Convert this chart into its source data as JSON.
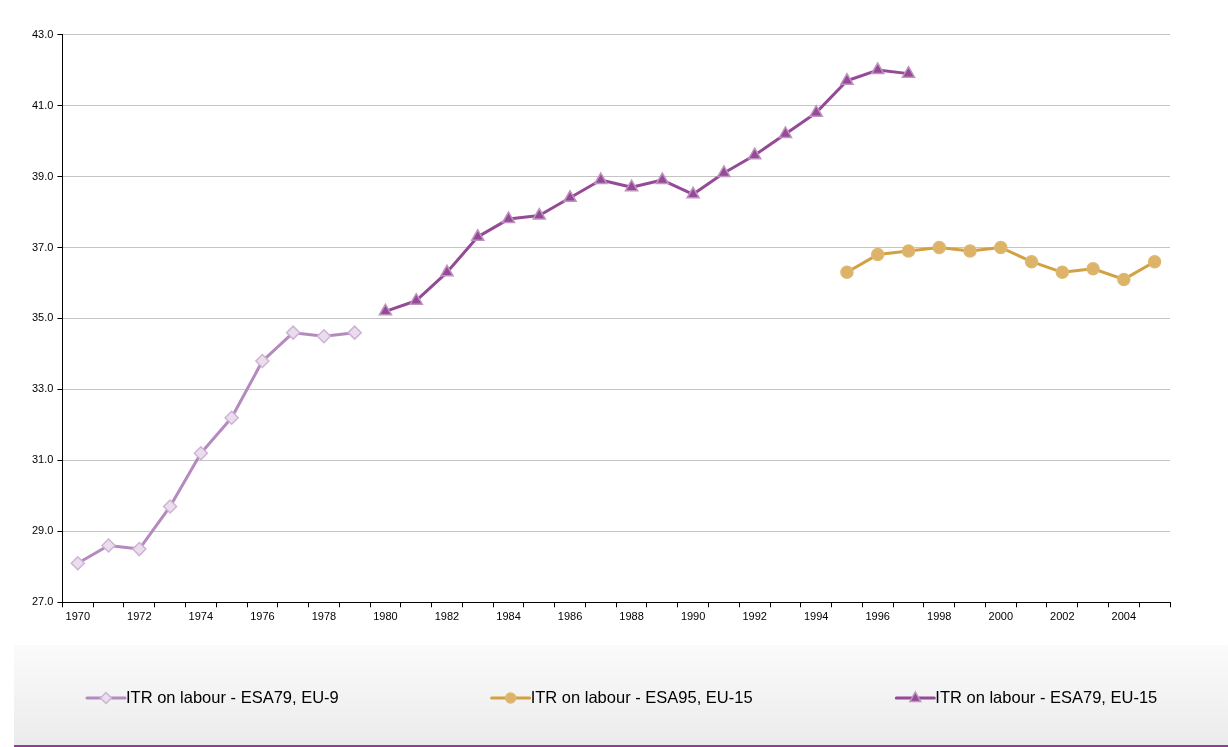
{
  "chart_data": {
    "type": "line",
    "categories": [
      "1970",
      null,
      "1972",
      null,
      "1974",
      null,
      "1976",
      null,
      "1978",
      null,
      "1980",
      null,
      "1982",
      null,
      "1984",
      null,
      "1986",
      null,
      "1988",
      null,
      "1990",
      null,
      "1992",
      null,
      "1994",
      null,
      "1996",
      null,
      "1998",
      null,
      "2000",
      null,
      "2002",
      null,
      "2004",
      null
    ],
    "series": [
      {
        "name": "ITR on labour - ESA79, EU-9",
        "color": "#b48abf",
        "marker": "diamond",
        "values": [
          28.1,
          28.6,
          28.5,
          29.7,
          31.2,
          32.2,
          33.8,
          34.6,
          34.5,
          34.6,
          null,
          null,
          null,
          null,
          null,
          null,
          null,
          null,
          null,
          null,
          null,
          null,
          null,
          null,
          null,
          null,
          null,
          null,
          null,
          null,
          null,
          null,
          null,
          null,
          null,
          null
        ]
      },
      {
        "name": "ITR on labour - ESA95, EU-15",
        "color": "#d3a042",
        "marker": "circle",
        "values": [
          null,
          null,
          null,
          null,
          null,
          null,
          null,
          null,
          null,
          null,
          null,
          null,
          null,
          null,
          null,
          null,
          null,
          null,
          null,
          null,
          null,
          null,
          null,
          null,
          null,
          36.3,
          36.8,
          36.9,
          37.0,
          36.9,
          37.0,
          36.6,
          36.3,
          36.4,
          36.1,
          36.6
        ]
      },
      {
        "name": "ITR on labour - ESA79, EU-15",
        "color": "#944a96",
        "marker": "triangle",
        "values": [
          null,
          null,
          null,
          null,
          null,
          null,
          null,
          null,
          null,
          null,
          35.2,
          35.5,
          36.3,
          37.3,
          37.8,
          37.9,
          38.4,
          38.9,
          38.7,
          38.9,
          38.5,
          39.1,
          39.6,
          40.2,
          40.8,
          41.7,
          42.0,
          41.9,
          null,
          null,
          null,
          null,
          null,
          null,
          null,
          null
        ]
      }
    ],
    "ylim": [
      27,
      43
    ],
    "yticks": [
      {
        "value": 27,
        "label": "27.0"
      },
      {
        "value": 29,
        "label": "29.0"
      },
      {
        "value": 31,
        "label": "31.0"
      },
      {
        "value": 33,
        "label": "33.0"
      },
      {
        "value": 35,
        "label": "35.0"
      },
      {
        "value": 37,
        "label": "37.0"
      },
      {
        "value": 39,
        "label": "39.0"
      },
      {
        "value": 41,
        "label": "41.0"
      },
      {
        "value": 43,
        "label": "43.0"
      }
    ],
    "grid": "y",
    "legend": "bottom"
  }
}
